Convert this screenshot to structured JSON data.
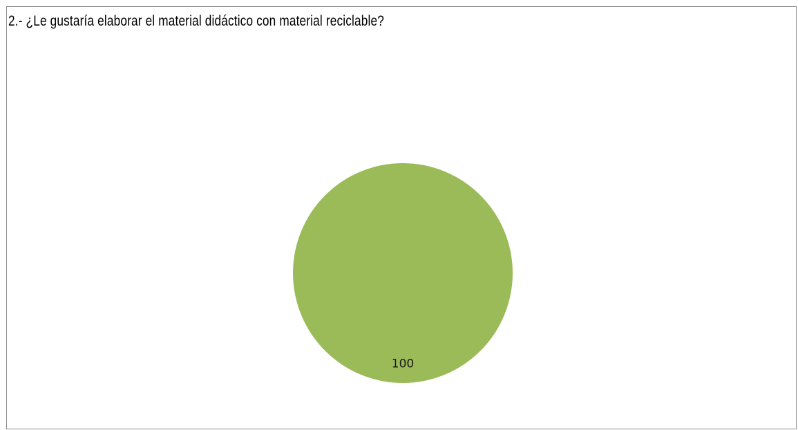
{
  "chart_data": {
    "type": "pie",
    "title": "2.- ¿Le gustaría elaborar el material didáctico con material reciclable?",
    "slices": [
      {
        "value": 100,
        "label": "100",
        "color": "#9bbb59"
      }
    ]
  }
}
